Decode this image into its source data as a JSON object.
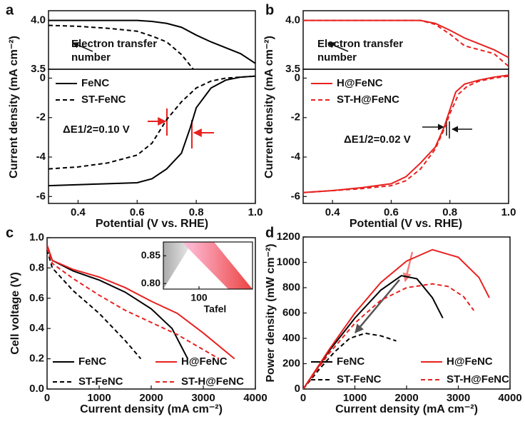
{
  "chart_data": [
    {
      "type": "line",
      "panel": "a",
      "xlim": [
        0.3,
        1.0
      ],
      "ylim": [
        3.5,
        4.1
      ],
      "yticks": [
        {
          "value": 4.0,
          "label": "4.0"
        },
        {
          "value": 3.5,
          "label": "3.5"
        }
      ],
      "annotations": [
        "Electron transfer number"
      ],
      "series": [
        {
          "color": "#000000",
          "style": "solid",
          "x": [
            0.3,
            0.4,
            0.5,
            0.6,
            0.65,
            0.7,
            0.75,
            0.8,
            0.85,
            0.9,
            0.95,
            1.0
          ],
          "values": [
            4.0,
            4.0,
            4.0,
            4.0,
            3.99,
            3.97,
            3.93,
            3.85,
            3.78,
            3.72,
            3.66,
            3.56
          ]
        },
        {
          "color": "#000000",
          "style": "dashed",
          "x": [
            0.3,
            0.4,
            0.5,
            0.6,
            0.65,
            0.7,
            0.75,
            0.79
          ],
          "values": [
            3.95,
            3.94,
            3.92,
            3.89,
            3.84,
            3.78,
            3.65,
            3.5
          ]
        }
      ]
    },
    {
      "type": "line",
      "xlabel": "Potential (V vs. RHE)",
      "ylabel": "Current density (mA cm⁻²)",
      "xlim": [
        0.3,
        1.0
      ],
      "ylim": [
        -6.35,
        0.45
      ],
      "xticks": [
        0.4,
        0.6,
        0.8,
        {
          "value": 1.0,
          "label": "1.0"
        }
      ],
      "yticks": [
        0,
        -2,
        -4,
        -6
      ],
      "annotations": [
        "ΔE1/2=0.10 V"
      ],
      "series": [
        {
          "name": "FeNC",
          "color": "#000000",
          "style": "solid",
          "x": [
            0.3,
            0.4,
            0.5,
            0.6,
            0.65,
            0.7,
            0.75,
            0.78,
            0.8,
            0.85,
            0.9,
            0.95,
            1.0
          ],
          "values": [
            -5.45,
            -5.4,
            -5.35,
            -5.3,
            -5.1,
            -4.6,
            -3.8,
            -2.5,
            -1.5,
            -0.5,
            -0.1,
            0.05,
            0.1
          ]
        },
        {
          "name": "ST-FeNC",
          "color": "#000000",
          "style": "dashed",
          "x": [
            0.3,
            0.4,
            0.5,
            0.6,
            0.65,
            0.7,
            0.75,
            0.8,
            0.85,
            0.9,
            0.95,
            1.0
          ],
          "values": [
            -4.6,
            -4.5,
            -4.3,
            -3.9,
            -3.3,
            -2.1,
            -1.2,
            -0.5,
            -0.15,
            0.0,
            0.05,
            0.1
          ]
        }
      ]
    },
    {
      "type": "line",
      "panel": "b",
      "xlim": [
        0.3,
        1.0
      ],
      "ylim": [
        3.5,
        4.1
      ],
      "yticks": [
        {
          "value": 4.0,
          "label": "4.0"
        },
        {
          "value": 3.5,
          "label": "3.5"
        }
      ],
      "annotations": [
        "Electron transfer number"
      ],
      "series": [
        {
          "color": "#e8211f",
          "style": "solid",
          "x": [
            0.3,
            0.4,
            0.5,
            0.6,
            0.7,
            0.75,
            0.8,
            0.85,
            0.9,
            0.95,
            1.0
          ],
          "values": [
            4.0,
            4.0,
            4.0,
            4.0,
            4.0,
            3.97,
            3.9,
            3.82,
            3.76,
            3.7,
            3.62
          ]
        },
        {
          "color": "#e8211f",
          "style": "dashed",
          "x": [
            0.3,
            0.4,
            0.5,
            0.6,
            0.7,
            0.75,
            0.8,
            0.85,
            0.9,
            0.95,
            1.0
          ],
          "values": [
            4.0,
            4.0,
            4.0,
            4.0,
            4.0,
            3.96,
            3.86,
            3.74,
            3.7,
            3.66,
            3.53
          ]
        }
      ]
    },
    {
      "type": "line",
      "xlabel": "Potential (V vs. RHE)",
      "ylabel": "Current density (mA cm⁻²)",
      "xlim": [
        0.3,
        1.0
      ],
      "ylim": [
        -6.35,
        0.45
      ],
      "xticks": [
        0.4,
        0.6,
        0.8,
        {
          "value": 1.0,
          "label": "1.0"
        }
      ],
      "yticks": [
        0,
        -2,
        -4,
        -6
      ],
      "annotations": [
        "ΔE1/2=0.02 V"
      ],
      "series": [
        {
          "name": "H@FeNC",
          "color": "#e8211f",
          "style": "solid",
          "x": [
            0.3,
            0.4,
            0.5,
            0.6,
            0.65,
            0.7,
            0.75,
            0.78,
            0.8,
            0.82,
            0.85,
            0.9,
            0.95,
            1.0
          ],
          "values": [
            -5.8,
            -5.7,
            -5.55,
            -5.35,
            -5.0,
            -4.3,
            -3.5,
            -2.5,
            -1.6,
            -0.7,
            -0.3,
            -0.1,
            0.05,
            0.15
          ]
        },
        {
          "name": "ST-H@FeNC",
          "color": "#e8211f",
          "style": "dashed",
          "x": [
            0.3,
            0.4,
            0.5,
            0.6,
            0.65,
            0.7,
            0.75,
            0.78,
            0.8,
            0.83,
            0.86,
            0.9,
            0.95,
            1.0
          ],
          "values": [
            -5.8,
            -5.7,
            -5.6,
            -5.45,
            -5.2,
            -4.6,
            -3.6,
            -2.6,
            -1.8,
            -0.8,
            -0.4,
            -0.15,
            0.0,
            0.1
          ]
        }
      ]
    },
    {
      "type": "line",
      "panel": "c",
      "xlabel": "Current density (mA cm⁻²)",
      "ylabel": "Cell voltage (V)",
      "xlim": [
        0,
        4000
      ],
      "ylim": [
        0,
        1.0
      ],
      "xticks": [
        0,
        1000,
        2000,
        3000,
        4000
      ],
      "yticks": [
        {
          "value": 0,
          "label": "0.0"
        },
        0.2,
        0.4,
        0.6,
        0.8,
        {
          "value": 1.0,
          "label": "1.0"
        }
      ],
      "inset": {
        "xlabel": "Tafel",
        "xlim": [
          60,
          160
        ],
        "ylim": [
          0.79,
          0.875
        ],
        "xticks": [
          100
        ],
        "yticks": [
          {
            "value": 0.85,
            "label": "0.85"
          },
          {
            "value": 0.8,
            "label": "0.80"
          }
        ]
      },
      "series": [
        {
          "name": "FeNC",
          "color": "#000000",
          "style": "solid",
          "x": [
            0,
            100,
            500,
            1000,
            1500,
            2000,
            2400,
            2700
          ],
          "values": [
            0.95,
            0.85,
            0.78,
            0.72,
            0.64,
            0.53,
            0.4,
            0.2
          ]
        },
        {
          "name": "ST-FeNC",
          "color": "#000000",
          "style": "dashed",
          "x": [
            0,
            100,
            500,
            1000,
            1500,
            1800
          ],
          "values": [
            0.92,
            0.8,
            0.65,
            0.5,
            0.32,
            0.2
          ]
        },
        {
          "name": "H@FeNC",
          "color": "#e8211f",
          "style": "solid",
          "x": [
            0,
            100,
            500,
            1000,
            1500,
            2000,
            2500,
            3000,
            3600
          ],
          "values": [
            0.95,
            0.85,
            0.79,
            0.74,
            0.67,
            0.58,
            0.5,
            0.37,
            0.2
          ]
        },
        {
          "name": "ST-H@FeNC",
          "color": "#e8211f",
          "style": "dashed",
          "x": [
            0,
            100,
            500,
            1000,
            1500,
            2000,
            2500,
            3000,
            3300
          ],
          "values": [
            0.93,
            0.83,
            0.73,
            0.62,
            0.52,
            0.44,
            0.36,
            0.26,
            0.2
          ]
        }
      ]
    },
    {
      "type": "line",
      "panel": "d",
      "xlabel": "Current density (mA cm⁻²)",
      "ylabel": "Power density (mW cm⁻²)",
      "xlim": [
        0,
        4000
      ],
      "ylim": [
        0,
        1200
      ],
      "xticks": [
        0,
        1000,
        2000,
        3000,
        4000
      ],
      "yticks": [
        0,
        200,
        400,
        600,
        800,
        1000,
        1200
      ],
      "series": [
        {
          "name": "FeNC",
          "color": "#000000",
          "style": "solid",
          "x": [
            0,
            500,
            1000,
            1500,
            1900,
            2200,
            2500,
            2700
          ],
          "values": [
            0,
            300,
            560,
            780,
            895,
            870,
            720,
            560
          ]
        },
        {
          "name": "ST-FeNC",
          "color": "#000000",
          "style": "dashed",
          "x": [
            0,
            300,
            600,
            900,
            1200,
            1500,
            1800
          ],
          "values": [
            0,
            150,
            290,
            400,
            440,
            420,
            380
          ]
        },
        {
          "name": "H@FeNC",
          "color": "#e8211f",
          "style": "solid",
          "x": [
            0,
            500,
            1000,
            1500,
            2000,
            2500,
            3000,
            3400,
            3600
          ],
          "values": [
            0,
            310,
            600,
            840,
            1010,
            1100,
            1040,
            880,
            720
          ]
        },
        {
          "name": "ST-H@FeNC",
          "color": "#e8211f",
          "style": "dashed",
          "x": [
            0,
            500,
            1000,
            1500,
            2000,
            2500,
            2800,
            3100,
            3300
          ],
          "values": [
            0,
            280,
            520,
            700,
            800,
            830,
            810,
            730,
            620
          ]
        }
      ]
    }
  ]
}
